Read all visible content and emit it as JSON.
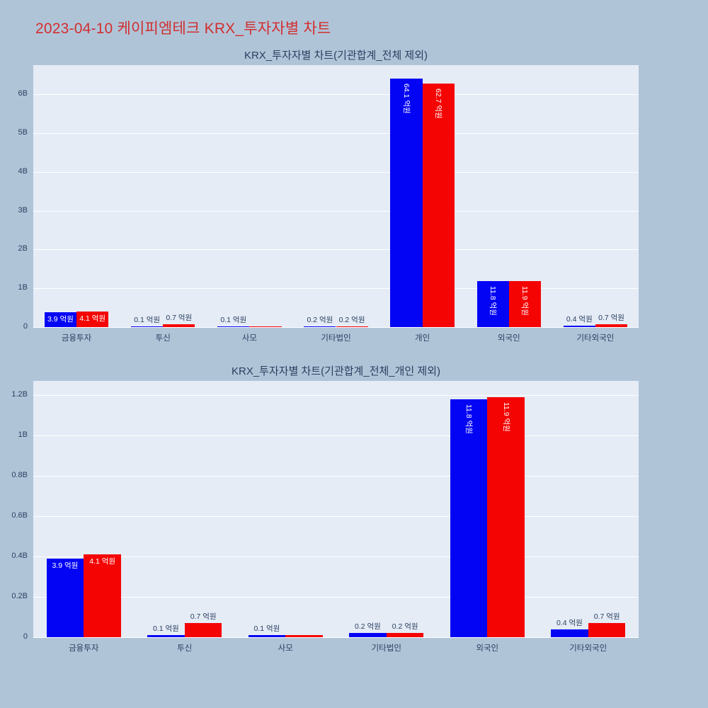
{
  "page": {
    "title": "2023-04-10 케이피엠테크 KRX_투자자별 차트",
    "title_color": "#d22f2f",
    "background": "#b0c4d8"
  },
  "palette": {
    "plot_background": "#e5ecf6",
    "gridline": "#ffffff",
    "axis_text": "#2a3f5f",
    "inside_label_text": "#ffffff",
    "series_blue": "#0404f5",
    "series_red": "#f50404"
  },
  "chart_data": [
    {
      "type": "bar",
      "title": "KRX_투자자별 차트(기관합계_전체 제외)",
      "categories": [
        "금융투자",
        "투신",
        "사모",
        "기타법인",
        "개인",
        "외국인",
        "기타외국인"
      ],
      "unit": "억원",
      "axis_unit": "B",
      "grid": true,
      "legend": "none",
      "ylim": [
        0,
        6.75
      ],
      "ytick_values": [
        0,
        1,
        2,
        3,
        4,
        5,
        6
      ],
      "ytick_labels": [
        "0",
        "1B",
        "2B",
        "3B",
        "4B",
        "5B",
        "6B"
      ],
      "series": [
        {
          "name": "blue",
          "color": "#0404f5",
          "values": [
            0.39,
            0.01,
            0.01,
            0.02,
            6.41,
            1.18,
            0.04
          ],
          "labels": [
            "3.9 억원",
            "0.1 억원",
            "0.1 억원",
            "0.2 억원",
            "64.1 억원",
            "11.8 억원",
            "0.4 억원"
          ],
          "label_modes": [
            "in-h",
            "out",
            "out",
            "out",
            "in-v",
            "in-v",
            "out"
          ]
        },
        {
          "name": "red",
          "color": "#f50404",
          "values": [
            0.41,
            0.07,
            0.01,
            0.02,
            6.27,
            1.19,
            0.07
          ],
          "labels": [
            "4.1 억원",
            "0.7 억원",
            "",
            "0.2 억원",
            "62.7 억원",
            "11.9 억원",
            "0.7 억원"
          ],
          "label_modes": [
            "in-h",
            "out",
            "out",
            "out",
            "in-v",
            "in-v",
            "out"
          ]
        }
      ]
    },
    {
      "type": "bar",
      "title": "KRX_투자자별 차트(기관합계_전체_개인 제외)",
      "categories": [
        "금융투자",
        "투신",
        "사모",
        "기타법인",
        "외국인",
        "기타외국인"
      ],
      "unit": "억원",
      "axis_unit": "B",
      "grid": true,
      "legend": "none",
      "ylim": [
        0,
        1.27
      ],
      "ytick_values": [
        0,
        0.2,
        0.4,
        0.6,
        0.8,
        1.0,
        1.2
      ],
      "ytick_labels": [
        "0",
        "0.2B",
        "0.4B",
        "0.6B",
        "0.8B",
        "1B",
        "1.2B"
      ],
      "series": [
        {
          "name": "blue",
          "color": "#0404f5",
          "values": [
            0.39,
            0.01,
            0.01,
            0.02,
            1.18,
            0.04
          ],
          "labels": [
            "3.9 억원",
            "0.1 억원",
            "0.1 억원",
            "0.2 억원",
            "11.8 억원",
            "0.4 억원"
          ],
          "label_modes": [
            "in-h",
            "out",
            "out",
            "out",
            "in-v",
            "out"
          ]
        },
        {
          "name": "red",
          "color": "#f50404",
          "values": [
            0.41,
            0.07,
            0.01,
            0.02,
            1.19,
            0.07
          ],
          "labels": [
            "4.1 억원",
            "0.7 억원",
            "",
            "0.2 억원",
            "11.9 억원",
            "0.7 억원"
          ],
          "label_modes": [
            "in-h",
            "out",
            "out",
            "out",
            "in-v",
            "out"
          ]
        }
      ]
    }
  ]
}
